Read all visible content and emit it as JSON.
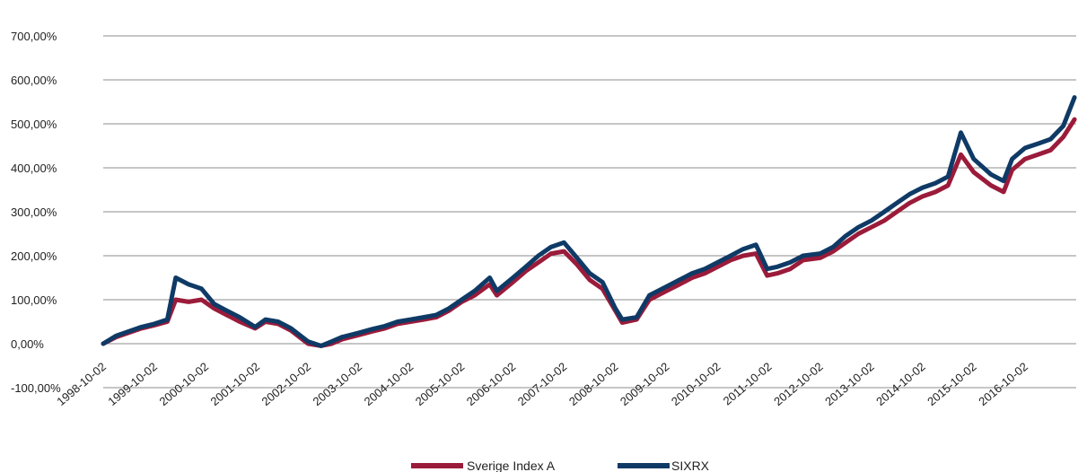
{
  "chart_data": {
    "type": "line",
    "title": "",
    "xlabel": "",
    "ylabel": "",
    "ylim": [
      -100,
      700
    ],
    "y_ticks": [
      "700,00%",
      "600,00%",
      "500,00%",
      "400,00%",
      "300,00%",
      "200,00%",
      "100,00%",
      "0,00%",
      "-100,00%"
    ],
    "y_tick_values": [
      700,
      600,
      500,
      400,
      300,
      200,
      100,
      0,
      -100
    ],
    "x_ticks": [
      "1998-10-02",
      "1999-10-02",
      "2000-10-02",
      "2001-10-02",
      "2002-10-02",
      "2003-10-02",
      "2004-10-02",
      "2005-10-02",
      "2006-10-02",
      "2007-10-02",
      "2008-10-02",
      "2009-10-02",
      "2010-10-02",
      "2011-10-02",
      "2012-10-02",
      "2013-10-02",
      "2014-10-02",
      "2015-10-02",
      "2016-10-02"
    ],
    "x_range": [
      "1998-10-02",
      "2017-10-02"
    ],
    "grid": "horizontal",
    "legend": "bottom-center",
    "x": [
      "1998-10-02",
      "1999-01-02",
      "1999-04-02",
      "1999-07-02",
      "1999-10-02",
      "2000-01-02",
      "2000-03-02",
      "2000-06-02",
      "2000-09-02",
      "2000-12-02",
      "2001-03-02",
      "2001-06-02",
      "2001-09-20",
      "2001-12-02",
      "2002-03-02",
      "2002-06-02",
      "2002-10-02",
      "2003-01-02",
      "2003-03-20",
      "2003-06-02",
      "2003-10-02",
      "2004-01-02",
      "2004-04-02",
      "2004-07-02",
      "2004-10-02",
      "2005-01-02",
      "2005-04-02",
      "2005-07-02",
      "2005-10-02",
      "2006-01-02",
      "2006-04-20",
      "2006-06-10",
      "2006-10-02",
      "2007-01-02",
      "2007-04-02",
      "2007-07-02",
      "2007-10-02",
      "2008-01-02",
      "2008-04-02",
      "2008-07-02",
      "2008-10-02",
      "2008-11-20",
      "2009-03-02",
      "2009-06-02",
      "2009-10-02",
      "2010-01-02",
      "2010-04-02",
      "2010-07-02",
      "2010-10-02",
      "2011-01-02",
      "2011-04-02",
      "2011-07-02",
      "2011-09-20",
      "2011-12-02",
      "2012-03-02",
      "2012-06-02",
      "2012-10-02",
      "2013-01-02",
      "2013-04-02",
      "2013-07-02",
      "2013-10-02",
      "2014-01-02",
      "2014-04-02",
      "2014-07-02",
      "2014-10-02",
      "2015-01-02",
      "2015-04-02",
      "2015-07-02",
      "2015-10-02",
      "2016-02-02",
      "2016-05-02",
      "2016-07-02",
      "2016-10-02",
      "2017-01-02",
      "2017-04-02",
      "2017-07-02",
      "2017-09-20"
    ],
    "series": [
      {
        "name": "Sverige Index A",
        "color": "#9b1b3a",
        "values": [
          0,
          15,
          25,
          35,
          42,
          50,
          100,
          95,
          100,
          80,
          65,
          50,
          35,
          50,
          45,
          30,
          0,
          -5,
          0,
          10,
          20,
          28,
          35,
          45,
          50,
          55,
          60,
          75,
          95,
          110,
          135,
          110,
          140,
          165,
          185,
          205,
          210,
          180,
          145,
          125,
          75,
          48,
          55,
          100,
          120,
          135,
          150,
          160,
          175,
          190,
          200,
          205,
          155,
          160,
          170,
          190,
          195,
          210,
          230,
          250,
          265,
          280,
          300,
          320,
          335,
          345,
          360,
          430,
          390,
          360,
          345,
          395,
          420,
          430,
          440,
          470,
          510
        ]
      },
      {
        "name": "SIXRX",
        "color": "#0f3a66",
        "values": [
          0,
          18,
          28,
          38,
          45,
          55,
          150,
          135,
          125,
          90,
          75,
          60,
          38,
          55,
          50,
          35,
          5,
          -5,
          5,
          15,
          25,
          33,
          40,
          50,
          55,
          60,
          65,
          80,
          100,
          120,
          150,
          120,
          150,
          175,
          200,
          220,
          230,
          195,
          160,
          140,
          80,
          55,
          60,
          110,
          130,
          145,
          160,
          170,
          185,
          200,
          215,
          225,
          170,
          175,
          185,
          200,
          205,
          220,
          245,
          265,
          280,
          300,
          320,
          340,
          355,
          365,
          380,
          480,
          420,
          385,
          370,
          420,
          445,
          455,
          465,
          495,
          560
        ]
      }
    ]
  }
}
